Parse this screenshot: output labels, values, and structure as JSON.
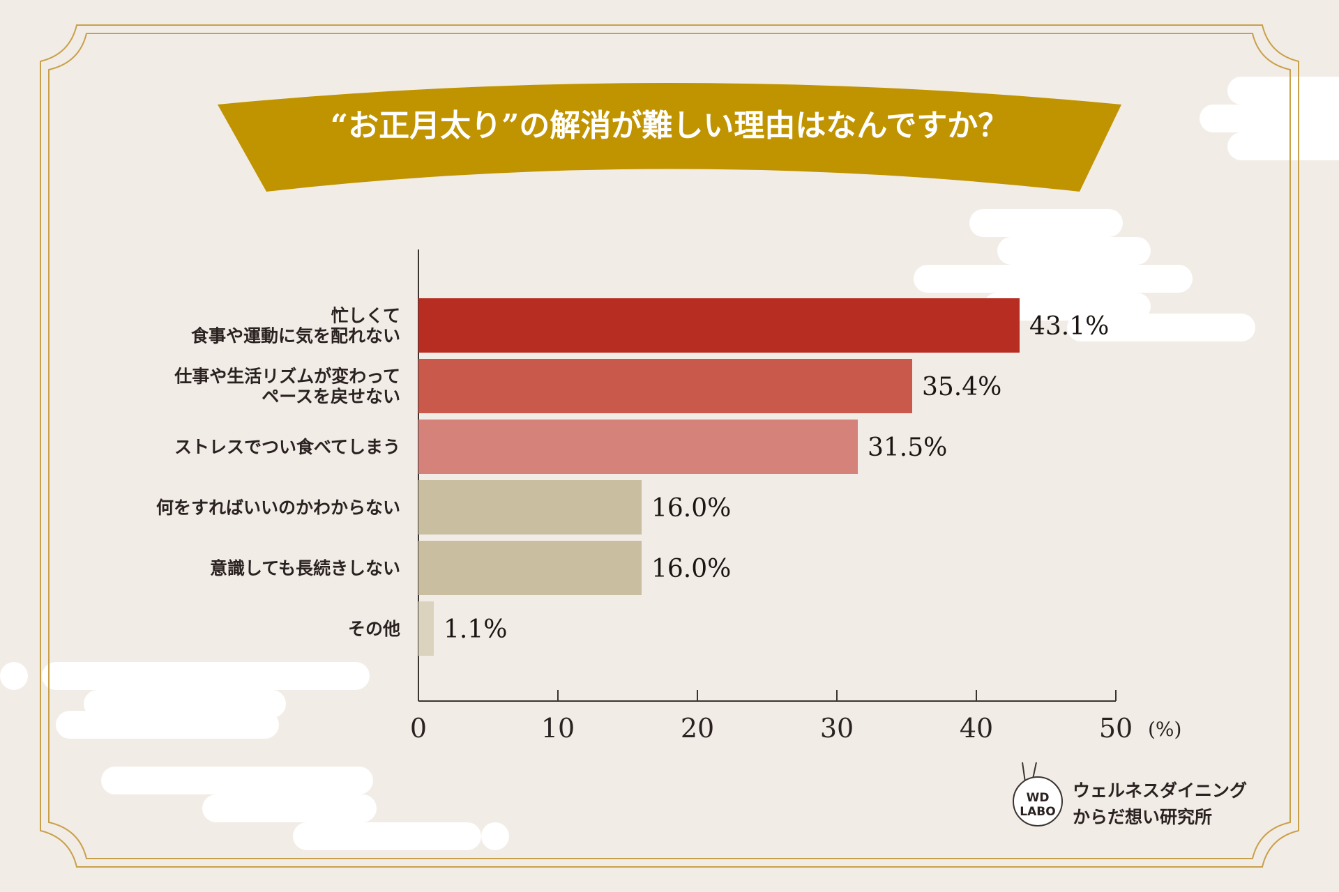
{
  "title": "“お正月太り”の解消が難しい理由はなんですか？",
  "colors": {
    "background": "#f2ece6",
    "frame": "#c9a04a",
    "banner": "#c09300",
    "cloud": "#ffffff",
    "axis": "#3a3330"
  },
  "chart_data": {
    "type": "bar",
    "orientation": "horizontal",
    "categories": [
      [
        "忙しくて",
        "食事や運動に気を配れない"
      ],
      [
        "仕事や生活リズムが変わって",
        "ペースを戻せない"
      ],
      [
        "ストレスでつい食べてしまう"
      ],
      [
        "何をすればいいのかわからない"
      ],
      [
        "意識しても長続きしない"
      ],
      [
        "その他"
      ]
    ],
    "values": [
      43.1,
      35.4,
      31.5,
      16.0,
      16.0,
      1.1
    ],
    "value_labels": [
      "43.1%",
      "35.4%",
      "31.5%",
      "16.0%",
      "16.0%",
      "1.1%"
    ],
    "bar_colors": [
      "#b72d22",
      "#c8594b",
      "#d5827a",
      "#c9bea0",
      "#c9bea0",
      "#dbd3be"
    ],
    "xlim": [
      0,
      50
    ],
    "xticks": [
      0,
      10,
      20,
      30,
      40,
      50
    ],
    "xtick_labels": [
      "0",
      "10",
      "20",
      "30",
      "40",
      "50"
    ],
    "unit_label": "(%)",
    "grid": false
  },
  "logo": {
    "badge_line1": "WD",
    "badge_line2": "LABO",
    "text_line1": "ウェルネスダイニング",
    "text_line2": "からだ想い研究所"
  }
}
